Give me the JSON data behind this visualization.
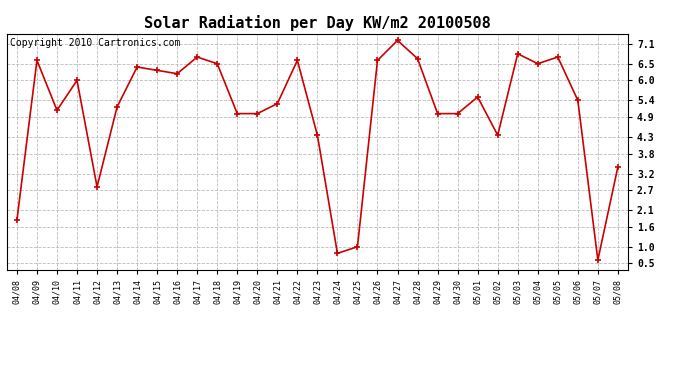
{
  "title": "Solar Radiation per Day KW/m2 20100508",
  "copyright": "Copyright 2010 Cartronics.com",
  "dates": [
    "04/08",
    "04/09",
    "04/10",
    "04/11",
    "04/12",
    "04/13",
    "04/14",
    "04/15",
    "04/16",
    "04/17",
    "04/18",
    "04/19",
    "04/20",
    "04/21",
    "04/22",
    "04/23",
    "04/24",
    "04/25",
    "04/26",
    "04/27",
    "04/28",
    "04/29",
    "04/30",
    "05/01",
    "05/02",
    "05/03",
    "05/04",
    "05/05",
    "05/06",
    "05/07",
    "05/08"
  ],
  "values": [
    1.8,
    6.6,
    5.1,
    6.0,
    2.8,
    5.2,
    6.4,
    6.3,
    6.2,
    6.7,
    6.5,
    5.0,
    5.0,
    5.3,
    6.6,
    4.35,
    0.8,
    1.0,
    6.6,
    7.2,
    6.65,
    5.0,
    5.0,
    5.5,
    4.35,
    6.8,
    6.5,
    6.7,
    5.4,
    0.6,
    3.4
  ],
  "line_color": "#cc0000",
  "marker": "+",
  "marker_size": 4,
  "marker_linewidth": 1.2,
  "line_width": 1.2,
  "ylim": [
    0.3,
    7.4
  ],
  "yticks": [
    0.5,
    1.0,
    1.6,
    2.1,
    2.7,
    3.2,
    3.8,
    4.3,
    4.9,
    5.4,
    6.0,
    6.5,
    7.1
  ],
  "bg_color": "#ffffff",
  "plot_bg_color": "#ffffff",
  "grid_color": "#bbbbbb",
  "title_fontsize": 11,
  "tick_fontsize": 6,
  "copyright_fontsize": 7
}
